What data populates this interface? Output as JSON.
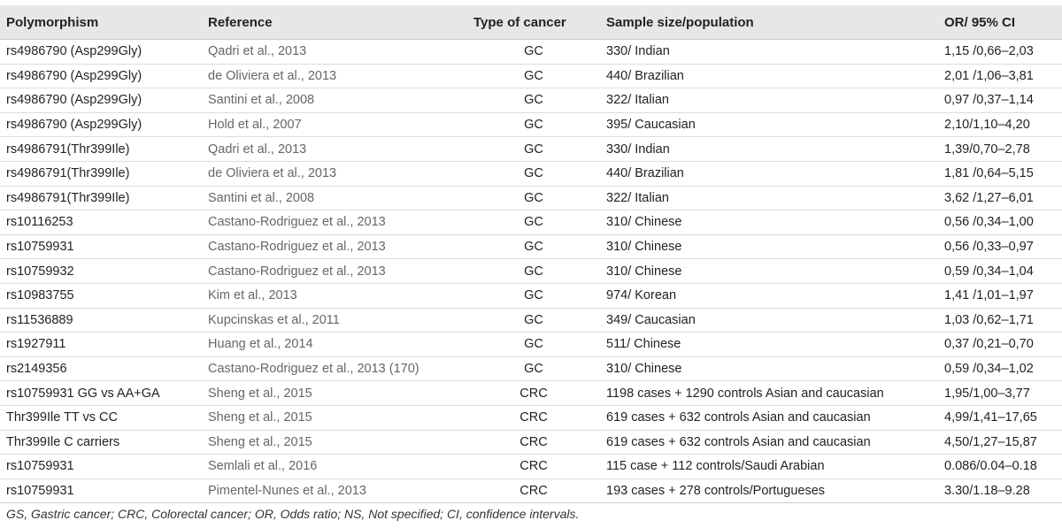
{
  "headers": [
    "Polymorphism",
    "Reference",
    "Type of cancer",
    "Sample size/population",
    "OR/ 95% CI"
  ],
  "rows": [
    [
      "rs4986790 (Asp299Gly)",
      "Qadri et al., 2013",
      "GC",
      "330/ Indian",
      "1,15 /0,66–2,03"
    ],
    [
      "rs4986790 (Asp299Gly)",
      "de Oliviera et al., 2013",
      "GC",
      "440/ Brazilian",
      "2,01 /1,06–3,81"
    ],
    [
      "rs4986790 (Asp299Gly)",
      "Santini et al., 2008",
      "GC",
      "322/ Italian",
      "0,97 /0,37–1,14"
    ],
    [
      "rs4986790 (Asp299Gly)",
      "Hold et al., 2007",
      "GC",
      "395/ Caucasian",
      "2,10/1,10–4,20"
    ],
    [
      "rs4986791(Thr399Ile)",
      "Qadri et al., 2013",
      "GC",
      "330/ Indian",
      "1,39/0,70–2,78"
    ],
    [
      "rs4986791(Thr399Ile)",
      "de Oliviera et al., 2013",
      "GC",
      "440/ Brazilian",
      "1,81 /0,64–5,15"
    ],
    [
      "rs4986791(Thr399Ile)",
      "Santini et al., 2008",
      "GC",
      "322/ Italian",
      "3,62 /1,27–6,01"
    ],
    [
      "rs10116253",
      "Castano-Rodriguez et al., 2013",
      "GC",
      "310/ Chinese",
      "0,56 /0,34–1,00"
    ],
    [
      "rs10759931",
      "Castano-Rodriguez et al., 2013",
      "GC",
      "310/ Chinese",
      "0,56 /0,33–0,97"
    ],
    [
      "rs10759932",
      "Castano-Rodriguez et al., 2013",
      "GC",
      "310/ Chinese",
      "0,59 /0,34–1,04"
    ],
    [
      "rs10983755",
      "Kim et al., 2013",
      "GC",
      "974/ Korean",
      "1,41 /1,01–1,97"
    ],
    [
      "rs11536889",
      "Kupcinskas et al., 2011",
      "GC",
      "349/ Caucasian",
      "1,03 /0,62–1,71"
    ],
    [
      "rs1927911",
      "Huang et al., 2014",
      "GC",
      "511/ Chinese",
      "0,37 /0,21–0,70"
    ],
    [
      "rs2149356",
      "Castano-Rodriguez et al., 2013 (170)",
      "GC",
      "310/ Chinese",
      "0,59 /0,34–1,02"
    ],
    [
      "rs10759931 GG vs AA+GA",
      "Sheng et al., 2015",
      "CRC",
      "1198 cases + 1290 controls Asian and caucasian",
      "1,95/1,00–3,77"
    ],
    [
      "Thr399Ile TT vs CC",
      "Sheng et al., 2015",
      "CRC",
      "619 cases + 632 controls Asian and caucasian",
      "4,99/1,41–17,65"
    ],
    [
      "Thr399Ile C carriers",
      "Sheng et al., 2015",
      "CRC",
      "619 cases + 632 controls Asian and caucasian",
      "4,50/1,27–15,87"
    ],
    [
      "rs10759931",
      "Semlali et al., 2016",
      "CRC",
      "115 case + 112 controls/Saudi Arabian",
      "0.086/0.04–0.18"
    ],
    [
      "rs10759931",
      "Pimentel-Nunes et al., 2013",
      "CRC",
      "193 cases + 278 controls/Portugueses",
      "3.30/1.18–9.28"
    ]
  ],
  "footnote": "GS, Gastric cancer; CRC, Colorectal cancer; OR, Odds ratio; NS, Not specified; CI, confidence intervals."
}
